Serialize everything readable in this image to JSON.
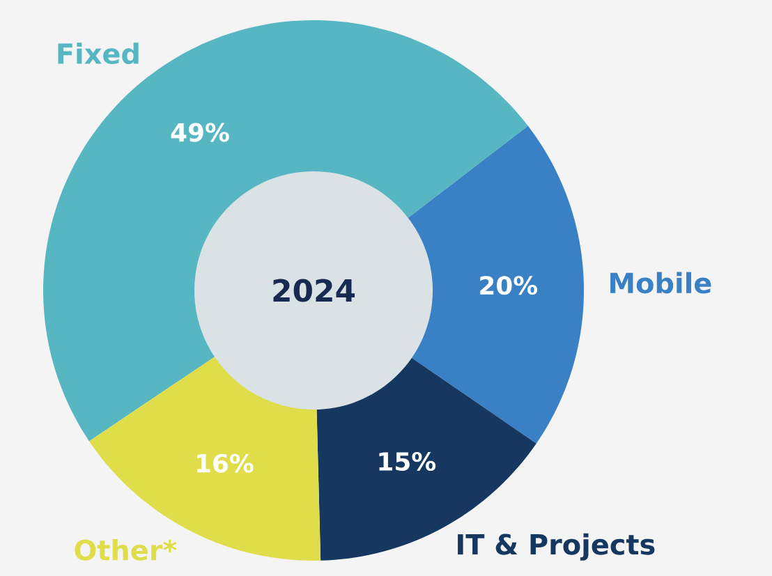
{
  "chart_data": {
    "type": "donut",
    "title": "2024",
    "categories": [
      "Fixed",
      "Mobile",
      "IT & Projects",
      "Other*"
    ],
    "values": [
      49,
      20,
      15,
      16
    ],
    "colors": [
      "#56b6c2",
      "#3a80c4",
      "#163760",
      "#dfdd4a"
    ],
    "value_labels": [
      "49%",
      "20%",
      "15%",
      "16%"
    ]
  }
}
